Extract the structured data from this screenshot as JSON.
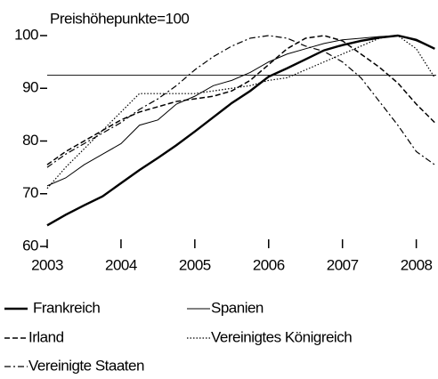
{
  "chart_data": {
    "type": "line",
    "ylabel": "Preishöhepunkte=100",
    "x": [
      2003,
      2003.25,
      2003.5,
      2003.75,
      2004,
      2004.25,
      2004.5,
      2004.75,
      2005,
      2005.25,
      2005.5,
      2005.75,
      2006,
      2006.25,
      2006.5,
      2006.75,
      2007,
      2007.25,
      2007.5,
      2007.75,
      2008,
      2008.25
    ],
    "xlim": [
      2003,
      2008.27
    ],
    "xticks": [
      2003,
      2004,
      2005,
      2006,
      2007,
      2008
    ],
    "ylim": [
      60,
      100
    ],
    "yticks": [
      60,
      70,
      80,
      90,
      100
    ],
    "reference_line": 92.5,
    "series": [
      {
        "name": "Frankreich",
        "color": "#000",
        "style": "solid",
        "width": 2.4,
        "values": [
          64,
          66,
          67.8,
          69.5,
          72,
          74.5,
          76.8,
          79.2,
          81.8,
          84.5,
          87.2,
          89.5,
          92.2,
          93.8,
          95.5,
          97.2,
          98.2,
          99,
          99.6,
          100,
          99.2,
          97.5
        ]
      },
      {
        "name": "Spanien",
        "color": "#000",
        "style": "solid",
        "width": 1,
        "values": [
          71.5,
          73,
          75.5,
          77.5,
          79.5,
          83,
          84,
          87,
          88.5,
          90.5,
          91.5,
          93,
          95,
          96.5,
          97.5,
          98.5,
          99.2,
          99.5,
          99.8,
          100,
          99,
          97.5
        ]
      },
      {
        "name": "Irland",
        "color": "#000",
        "style": "dashed",
        "width": 1.5,
        "values": [
          75.5,
          78,
          80,
          82,
          84,
          85.5,
          86.5,
          87.5,
          88,
          88.5,
          89.5,
          91.5,
          94.5,
          97.5,
          99.5,
          100,
          99,
          96.5,
          94,
          91,
          87,
          83.5
        ]
      },
      {
        "name": "Vereinigtes Königreich",
        "color": "#000",
        "style": "dotted",
        "width": 1.2,
        "values": [
          71,
          75,
          78.5,
          82,
          85.5,
          89,
          89,
          89,
          89,
          89.5,
          90,
          90.5,
          91.5,
          92,
          93.5,
          95,
          96.5,
          98,
          99.5,
          100,
          97.5,
          92
        ]
      },
      {
        "name": "Vereinigte Staaten",
        "color": "#000",
        "style": "dashdot",
        "width": 1.2,
        "values": [
          75,
          77.5,
          79.5,
          81.5,
          83.5,
          86,
          88,
          90.5,
          93.5,
          96,
          98,
          99.5,
          100,
          99.5,
          98,
          97,
          95,
          92,
          87.5,
          83,
          78,
          75.5
        ]
      }
    ]
  }
}
